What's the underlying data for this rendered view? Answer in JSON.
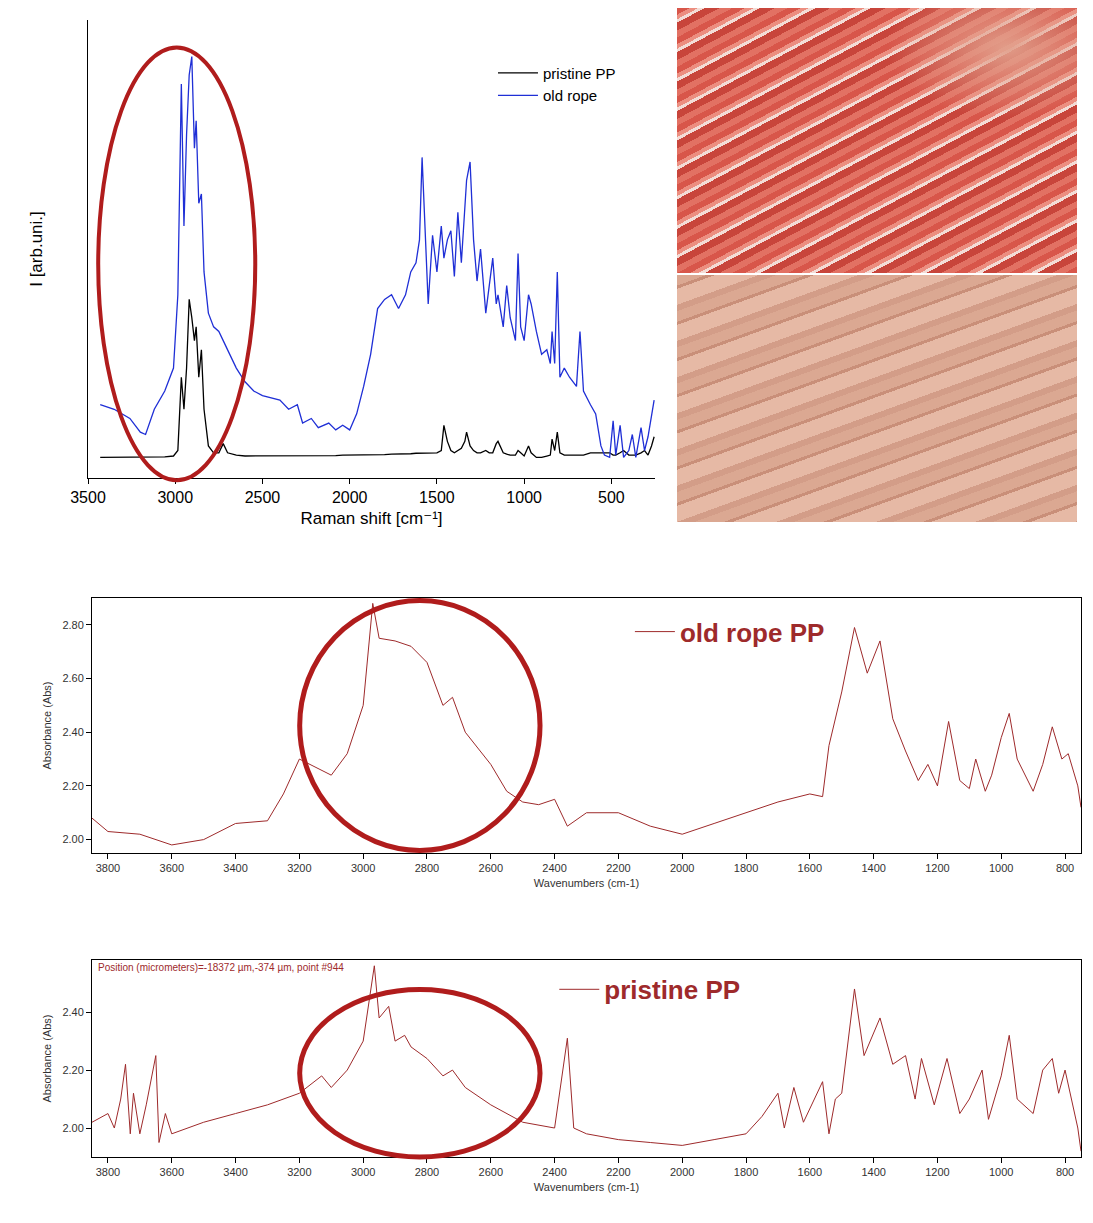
{
  "chart_data": [
    {
      "type": "line",
      "x_label": "Raman shift [cm⁻¹]",
      "y_label": "I [arb.uni.]",
      "xlim": [
        3500,
        250
      ],
      "ylim": [
        0,
        100
      ],
      "xticks": [
        3500,
        3000,
        2500,
        2000,
        1500,
        1000,
        500
      ],
      "grid": false,
      "legend": "upper right",
      "tick_labels": "x",
      "x": [
        3430,
        3350,
        3260,
        3200,
        3170,
        3120,
        3060,
        3010,
        2985,
        2965,
        2950,
        2935,
        2920,
        2905,
        2890,
        2880,
        2865,
        2850,
        2835,
        2810,
        2780,
        2750,
        2725,
        2700,
        2650,
        2600,
        2550,
        2500,
        2450,
        2400,
        2350,
        2300,
        2270,
        2220,
        2180,
        2120,
        2080,
        2040,
        2000,
        1960,
        1920,
        1880,
        1840,
        1800,
        1760,
        1720,
        1680,
        1650,
        1620,
        1600,
        1585,
        1570,
        1550,
        1525,
        1500,
        1475,
        1460,
        1440,
        1420,
        1400,
        1380,
        1360,
        1340,
        1330,
        1310,
        1290,
        1270,
        1250,
        1220,
        1200,
        1180,
        1160,
        1150,
        1120,
        1100,
        1080,
        1050,
        1035,
        1020,
        1000,
        975,
        960,
        930,
        900,
        870,
        850,
        840,
        825,
        810,
        795,
        770,
        740,
        700,
        680,
        660,
        620,
        590,
        560,
        540,
        510,
        490,
        475,
        450,
        430,
        400,
        380,
        360,
        330,
        310,
        290,
        270,
        255
      ],
      "series": [
        {
          "name": "pristine PP",
          "color": "#000000",
          "values": [
            4.5,
            4.5,
            4.5,
            4.5,
            4.5,
            4.6,
            4.6,
            4.8,
            6,
            22,
            15,
            24,
            39,
            35,
            30,
            33,
            22,
            28,
            15,
            7,
            5.5,
            5.5,
            7.5,
            5.5,
            5,
            4.8,
            4.8,
            4.8,
            4.8,
            4.8,
            4.8,
            4.9,
            4.9,
            4.9,
            4.9,
            4.9,
            4.9,
            5,
            5,
            5,
            5,
            5,
            5.1,
            5.1,
            5.2,
            5.2,
            5.3,
            5.3,
            5.4,
            5.4,
            5.4,
            5.4,
            5.5,
            5.5,
            5.5,
            6,
            11.5,
            8,
            6,
            5.5,
            6,
            6.5,
            8,
            10,
            7,
            6,
            5.5,
            5.5,
            6,
            5.5,
            5.5,
            7.5,
            8,
            5.5,
            5.2,
            5,
            5,
            6,
            5.5,
            4.8,
            7,
            5.5,
            4.5,
            4.5,
            4.8,
            5,
            8.5,
            6,
            10,
            5.5,
            5,
            5,
            5,
            5,
            5,
            5.5,
            5.5,
            5.5,
            5.5,
            5.5,
            5,
            5,
            5.5,
            6,
            5,
            5,
            5,
            5.5,
            6,
            5,
            7,
            9
          ]
        },
        {
          "name": "old rope",
          "color": "#1f2fd6",
          "values": [
            16,
            15,
            13,
            10,
            9.5,
            15,
            19,
            24,
            40,
            86,
            55,
            75,
            88,
            92,
            72,
            78,
            60,
            62,
            45,
            36,
            33,
            32,
            30,
            28,
            24,
            21,
            19,
            18,
            17.5,
            17,
            15,
            16,
            12,
            13,
            11,
            12,
            10.5,
            11.5,
            10.5,
            14,
            20,
            27,
            37,
            39,
            40,
            37,
            40,
            45,
            47,
            52,
            70,
            55,
            38,
            53,
            45,
            55,
            48,
            52,
            54,
            44,
            58,
            47,
            60,
            65,
            69,
            52,
            43,
            50,
            36,
            42,
            48,
            38,
            40,
            33,
            42,
            35,
            30,
            49,
            33,
            30,
            40,
            38,
            32,
            27,
            28,
            25,
            32,
            25,
            45,
            22,
            24,
            22,
            20,
            32,
            19,
            16,
            14,
            7,
            5,
            4.5,
            12.5,
            5,
            11.5,
            4.5,
            6,
            9.5,
            4.5,
            11,
            6,
            9,
            14,
            17
          ]
        }
      ]
    },
    {
      "type": "line",
      "x_label": "Wavenumbers (cm-1)",
      "y_label": "Absorbance (Abs)",
      "xlim": [
        3850,
        750
      ],
      "ylim": [
        1.95,
        2.9
      ],
      "xticks": [
        3800,
        3600,
        3400,
        3200,
        3000,
        2800,
        2600,
        2400,
        2200,
        2000,
        1800,
        1600,
        1400,
        1200,
        1000,
        800
      ],
      "yticks": [
        {
          "value": 2.0,
          "label": "2.00"
        },
        {
          "value": 2.2,
          "label": "2.20"
        },
        {
          "value": 2.4,
          "label": "2.40"
        },
        {
          "value": 2.6,
          "label": "2.60"
        },
        {
          "value": 2.8,
          "label": "2.80"
        }
      ],
      "grid": false,
      "legend": "top",
      "x": [
        3850,
        3800,
        3700,
        3600,
        3500,
        3400,
        3300,
        3250,
        3200,
        3150,
        3100,
        3050,
        3000,
        2970,
        2950,
        2900,
        2850,
        2800,
        2750,
        2720,
        2680,
        2600,
        2550,
        2500,
        2450,
        2400,
        2360,
        2300,
        2200,
        2100,
        2000,
        1900,
        1800,
        1700,
        1600,
        1560,
        1540,
        1500,
        1460,
        1420,
        1380,
        1340,
        1300,
        1260,
        1230,
        1200,
        1165,
        1130,
        1100,
        1080,
        1050,
        1030,
        1000,
        975,
        950,
        930,
        900,
        870,
        840,
        810,
        790,
        760,
        750
      ],
      "series": [
        {
          "name": "old rope PP",
          "color": "#9e2a2b",
          "values": [
            2.08,
            2.03,
            2.02,
            1.98,
            2.0,
            2.06,
            2.07,
            2.17,
            2.3,
            2.27,
            2.24,
            2.32,
            2.5,
            2.88,
            2.75,
            2.74,
            2.72,
            2.66,
            2.5,
            2.53,
            2.4,
            2.28,
            2.18,
            2.14,
            2.13,
            2.15,
            2.05,
            2.1,
            2.1,
            2.05,
            2.02,
            2.06,
            2.1,
            2.14,
            2.17,
            2.16,
            2.35,
            2.55,
            2.79,
            2.62,
            2.74,
            2.45,
            2.33,
            2.22,
            2.28,
            2.2,
            2.44,
            2.22,
            2.19,
            2.3,
            2.18,
            2.24,
            2.38,
            2.47,
            2.3,
            2.25,
            2.18,
            2.28,
            2.42,
            2.3,
            2.32,
            2.2,
            2.12
          ]
        }
      ]
    },
    {
      "type": "line",
      "x_label": "Wavenumbers (cm-1)",
      "y_label": "Absorbance (Abs)",
      "xlim": [
        3850,
        750
      ],
      "ylim": [
        1.9,
        2.58
      ],
      "xticks": [
        3800,
        3600,
        3400,
        3200,
        3000,
        2800,
        2600,
        2400,
        2200,
        2000,
        1800,
        1600,
        1400,
        1200,
        1000,
        800
      ],
      "yticks": [
        {
          "value": 2.0,
          "label": "2.00"
        },
        {
          "value": 2.2,
          "label": "2.20"
        },
        {
          "value": 2.4,
          "label": "2.40"
        }
      ],
      "grid": false,
      "legend": "top",
      "annotations": [
        "Position (micrometers)=-18372 µm,-374 µm, point #944"
      ],
      "x": [
        3850,
        3800,
        3780,
        3760,
        3745,
        3730,
        3720,
        3700,
        3680,
        3650,
        3640,
        3620,
        3600,
        3500,
        3400,
        3300,
        3200,
        3130,
        3100,
        3050,
        3000,
        2965,
        2950,
        2920,
        2900,
        2870,
        2850,
        2800,
        2750,
        2720,
        2680,
        2600,
        2500,
        2400,
        2360,
        2340,
        2300,
        2200,
        2100,
        2000,
        1900,
        1800,
        1750,
        1700,
        1680,
        1650,
        1620,
        1560,
        1540,
        1520,
        1500,
        1460,
        1430,
        1380,
        1340,
        1300,
        1270,
        1250,
        1210,
        1170,
        1130,
        1100,
        1060,
        1040,
        1000,
        975,
        950,
        900,
        870,
        840,
        820,
        800,
        760,
        750
      ],
      "series": [
        {
          "name": "pristine PP",
          "color": "#9e2a2b",
          "values": [
            2.02,
            2.05,
            2.0,
            2.1,
            2.22,
            1.98,
            2.12,
            1.98,
            2.08,
            2.25,
            1.95,
            2.05,
            1.98,
            2.02,
            2.05,
            2.08,
            2.12,
            2.18,
            2.14,
            2.2,
            2.3,
            2.56,
            2.38,
            2.42,
            2.3,
            2.32,
            2.28,
            2.24,
            2.18,
            2.2,
            2.14,
            2.08,
            2.02,
            2.0,
            2.31,
            2.0,
            1.98,
            1.96,
            1.95,
            1.94,
            1.96,
            1.98,
            2.04,
            2.12,
            2.0,
            2.14,
            2.02,
            2.16,
            1.98,
            2.1,
            2.12,
            2.48,
            2.25,
            2.38,
            2.22,
            2.25,
            2.1,
            2.24,
            2.08,
            2.24,
            2.05,
            2.1,
            2.2,
            2.03,
            2.18,
            2.32,
            2.1,
            2.05,
            2.2,
            2.24,
            2.12,
            2.2,
            2.0,
            1.92
          ]
        }
      ]
    }
  ]
}
